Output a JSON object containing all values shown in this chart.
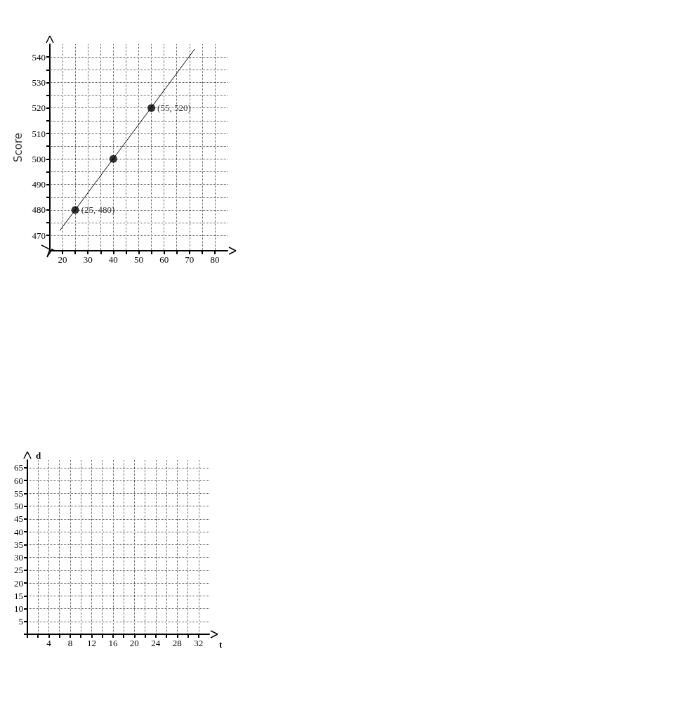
{
  "chart_data": [
    {
      "type": "scatter",
      "ylabel": "Score",
      "xlim": [
        15,
        85
      ],
      "ylim": [
        464,
        545
      ],
      "xticks": [
        20,
        {
          "value": 25,
          "label": null
        },
        30,
        {
          "value": 35,
          "label": null
        },
        40,
        {
          "value": 45,
          "label": null
        },
        50,
        {
          "value": 55,
          "label": null
        },
        60,
        {
          "value": 65,
          "label": null
        },
        70,
        {
          "value": 75,
          "label": null
        },
        80
      ],
      "yticks": [
        470,
        {
          "value": 475,
          "label": null
        },
        480,
        {
          "value": 485,
          "label": null
        },
        490,
        {
          "value": 495,
          "label": null
        },
        500,
        {
          "value": 505,
          "label": null
        },
        510,
        {
          "value": 515,
          "label": null
        },
        520,
        {
          "value": 525,
          "label": null
        },
        530,
        {
          "value": 535,
          "label": null
        },
        540
      ],
      "grid": true,
      "series": [
        {
          "type": "line",
          "color": "#000000",
          "marker": "none",
          "x": [
            19,
            72
          ],
          "values": [
            472,
            543
          ]
        },
        {
          "color": "#000000",
          "marker": "circle",
          "x": [
            25,
            40,
            55
          ],
          "values": [
            480,
            500,
            520
          ],
          "value_labels": [
            "(25, 480)",
            null,
            "(55, 520)"
          ]
        }
      ]
    },
    {
      "type": "line",
      "xlabel": "t",
      "ylabel": "d",
      "xlim": [
        0,
        34
      ],
      "ylim": [
        0,
        68
      ],
      "xticks": [
        {
          "value": 0,
          "label": null
        },
        {
          "value": 2,
          "label": null
        },
        4,
        {
          "value": 6,
          "label": null
        },
        8,
        {
          "value": 10,
          "label": null
        },
        12,
        {
          "value": 14,
          "label": null
        },
        16,
        {
          "value": 18,
          "label": null
        },
        20,
        {
          "value": 22,
          "label": null
        },
        24,
        {
          "value": 26,
          "label": null
        },
        28,
        {
          "value": 30,
          "label": null
        },
        32
      ],
      "yticks": [
        {
          "value": 0,
          "label": null
        },
        5,
        10,
        15,
        20,
        25,
        30,
        35,
        40,
        45,
        50,
        55,
        60,
        65
      ],
      "grid": true
    }
  ]
}
